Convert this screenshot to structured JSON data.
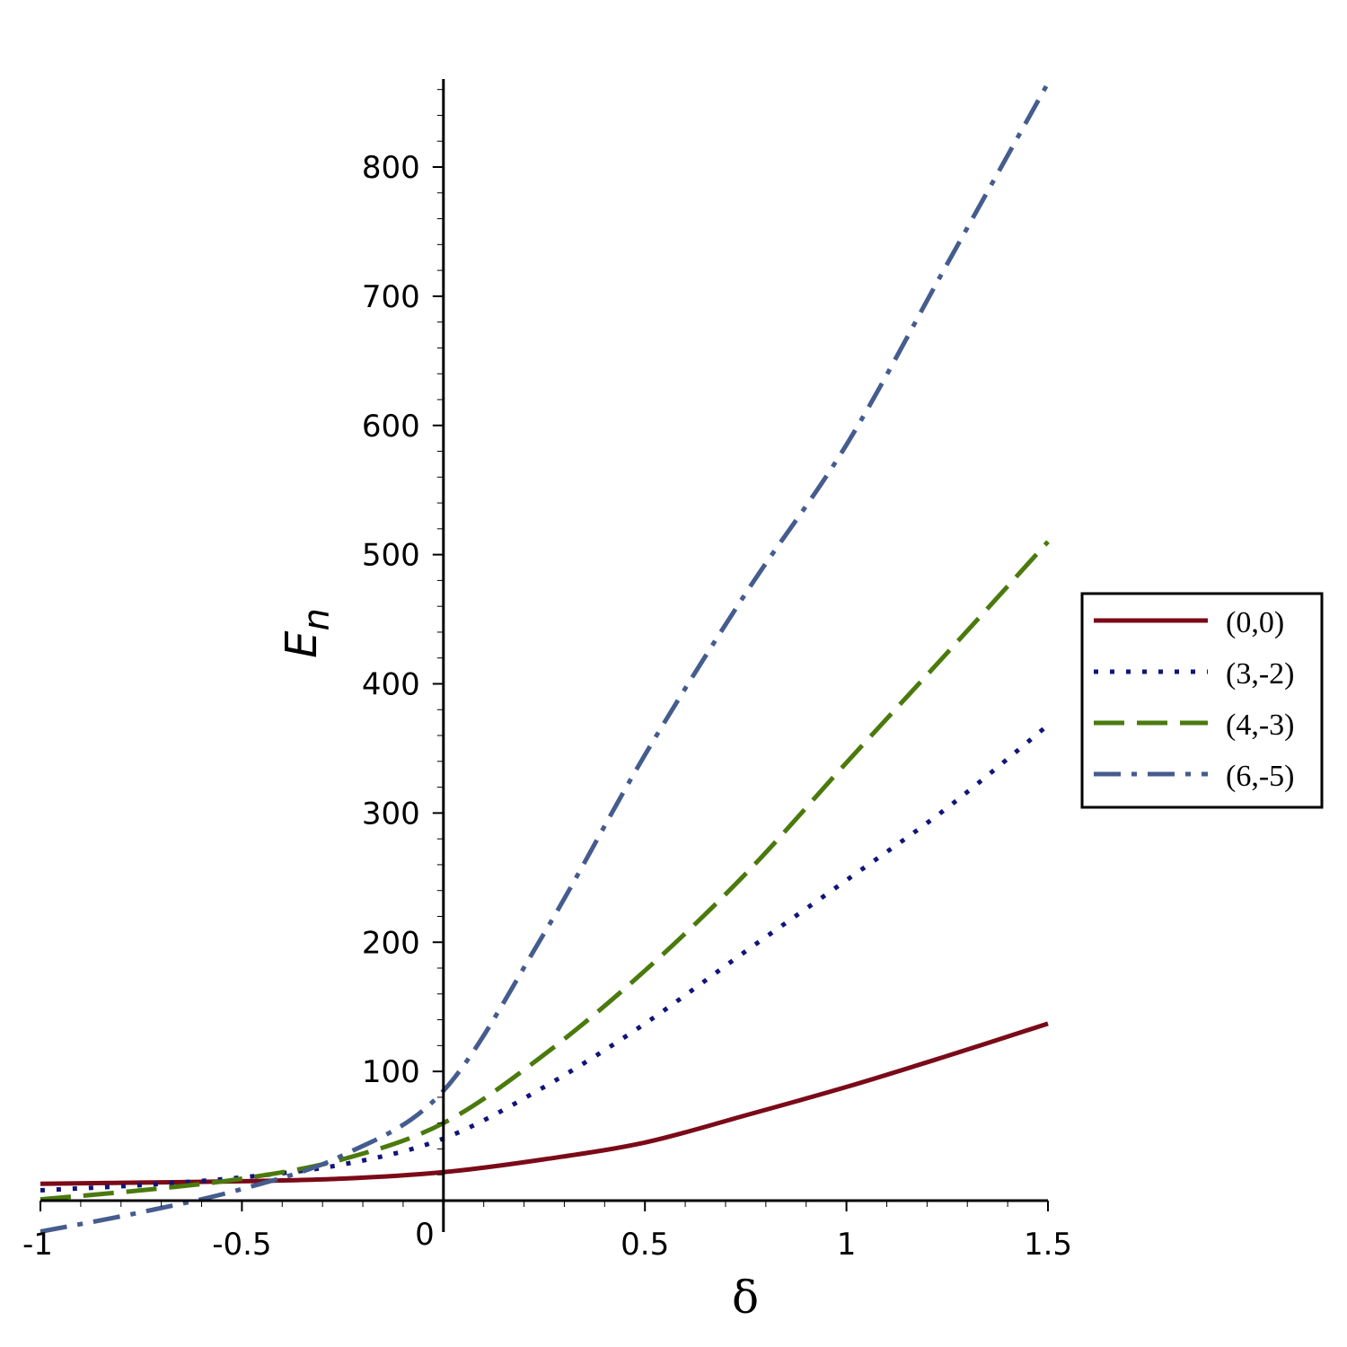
{
  "chart_data": {
    "type": "line",
    "xlabel": "δ",
    "ylabel": "E",
    "ylabel_sub": "n",
    "xlim": [
      -1,
      1.5
    ],
    "ylim": [
      -25,
      870
    ],
    "x_ticks": [
      {
        "value": -1,
        "label": "-1"
      },
      {
        "value": -0.5,
        "label": "-0.5"
      },
      {
        "value": 0,
        "label": "0"
      },
      {
        "value": 0.5,
        "label": "0.5"
      },
      {
        "value": 1,
        "label": "1"
      },
      {
        "value": 1.5,
        "label": "1.5"
      }
    ],
    "y_ticks": [
      {
        "value": 100,
        "label": "100"
      },
      {
        "value": 200,
        "label": "200"
      },
      {
        "value": 300,
        "label": "300"
      },
      {
        "value": 400,
        "label": "400"
      },
      {
        "value": 500,
        "label": "500"
      },
      {
        "value": 600,
        "label": "600"
      },
      {
        "value": 700,
        "label": "700"
      },
      {
        "value": 800,
        "label": "800"
      }
    ],
    "grid": false,
    "legend_position": "right",
    "series": [
      {
        "name": "(0,0)",
        "color": "#7b0a18",
        "style": "solid",
        "x": [
          -1,
          -0.75,
          -0.5,
          -0.25,
          0,
          0.25,
          0.5,
          0.75,
          1,
          1.25,
          1.5
        ],
        "y": [
          13,
          14,
          15,
          17,
          22,
          32,
          45,
          66,
          88,
          112,
          137
        ]
      },
      {
        "name": "(3,-2)",
        "color": "#10147a",
        "style": "dotted",
        "x": [
          -1,
          -0.75,
          -0.5,
          -0.25,
          0,
          0.25,
          0.5,
          0.75,
          1,
          1.25,
          1.5
        ],
        "y": [
          8,
          12,
          18,
          28,
          48,
          88,
          137,
          193,
          248,
          304,
          368
        ]
      },
      {
        "name": "(4,-3)",
        "color": "#4a7a0c",
        "style": "dashed",
        "x": [
          -1,
          -0.75,
          -0.5,
          -0.25,
          0,
          0.25,
          0.5,
          0.75,
          1,
          1.25,
          1.5
        ],
        "y": [
          1,
          8,
          17,
          32,
          60,
          113,
          178,
          253,
          339,
          424,
          510
        ]
      },
      {
        "name": "(6,-5)",
        "color": "#455c8f",
        "style": "dashdot",
        "x": [
          -1,
          -0.75,
          -0.5,
          -0.25,
          0,
          0.25,
          0.5,
          0.75,
          1,
          1.25,
          1.5
        ],
        "y": [
          -24,
          -9,
          9,
          35,
          85,
          207,
          345,
          470,
          585,
          725,
          865
        ]
      }
    ]
  }
}
